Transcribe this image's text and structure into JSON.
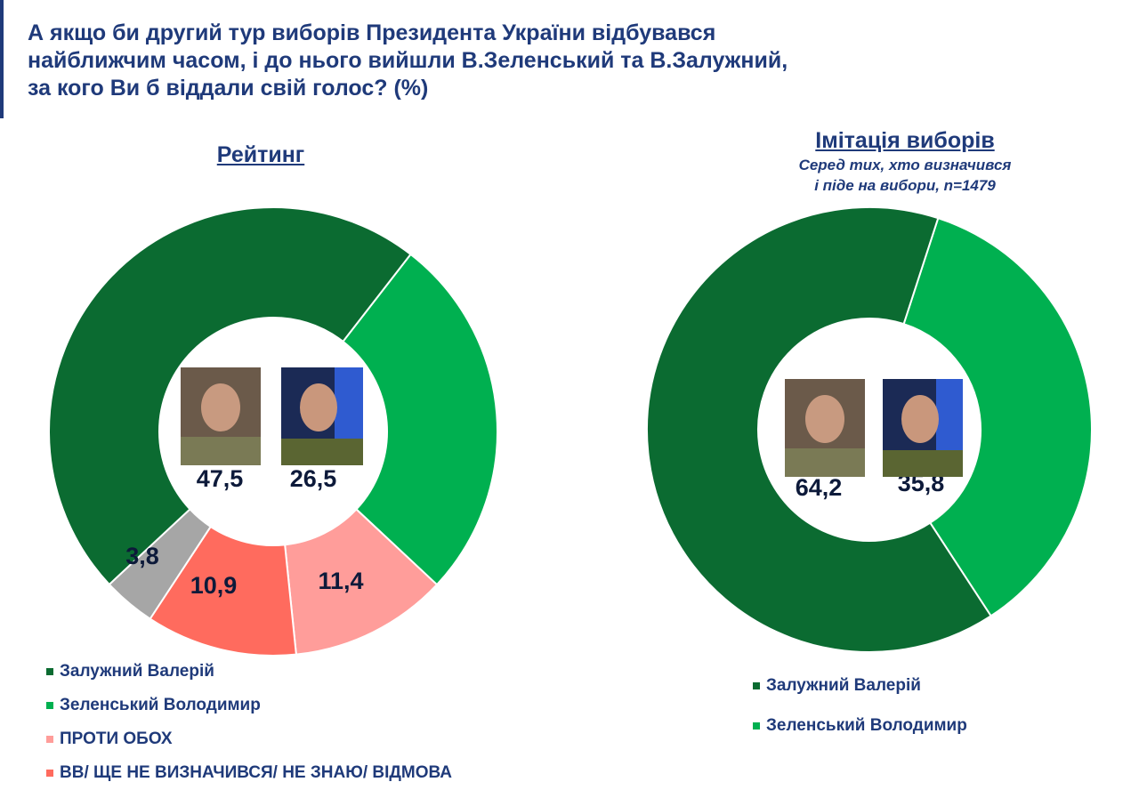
{
  "title": [
    "А якщо би другий тур виборів Президента України відбувався",
    "найближчим часом, і до нього вийшли В.Зеленський та В.Залужний,",
    "за кого Ви б віддали свій голос? (%)"
  ],
  "colors": {
    "zaluzhnyi": "#0b6b31",
    "zelensky": "#00b050",
    "against": "#ff9d9a",
    "undecided": "#ff6b5e",
    "other": "#a6a6a6",
    "text": "#1f3a7a"
  },
  "chart_data": [
    {
      "type": "pie",
      "title": "Рейтинг",
      "slices": [
        {
          "name": "Залужний Валерій",
          "value": 47.5,
          "label": "47,5",
          "color": "#0b6b31"
        },
        {
          "name": "Зеленський Володимир",
          "value": 26.5,
          "label": "26,5",
          "color": "#00b050"
        },
        {
          "name": "ПРОТИ ОБОХ",
          "value": 11.4,
          "label": "11,4",
          "color": "#ff9d9a"
        },
        {
          "name": "ВВ/ ЩЕ НЕ ВИЗНАЧИВСЯ/ НЕ ЗНАЮ/ ВІДМОВА",
          "value": 10.9,
          "label": "10,9",
          "color": "#ff6b5e"
        },
        {
          "name": "",
          "value": 3.8,
          "label": "3,8",
          "color": "#a6a6a6"
        }
      ],
      "legend": [
        "Залужний Валерій",
        "Зеленський Володимир",
        "ПРОТИ ОБОХ",
        "ВВ/ ЩЕ НЕ ВИЗНАЧИВСЯ/ НЕ ЗНАЮ/ ВІДМОВА"
      ],
      "legend_placement": "bottom-left",
      "donut": true
    },
    {
      "type": "pie",
      "title": "Імітація виборів",
      "subtitle": [
        "Серед тих, хто визначився",
        "і піде на вибори, n=1479"
      ],
      "slices": [
        {
          "name": "Залужний Валерій",
          "value": 64.2,
          "label": "64,2",
          "color": "#0b6b31"
        },
        {
          "name": "Зеленський Володимир",
          "value": 35.8,
          "label": "35,8",
          "color": "#00b050"
        }
      ],
      "legend": [
        "Залужний Валерій",
        "Зеленський Володимир"
      ],
      "legend_placement": "bottom",
      "donut": true
    }
  ]
}
